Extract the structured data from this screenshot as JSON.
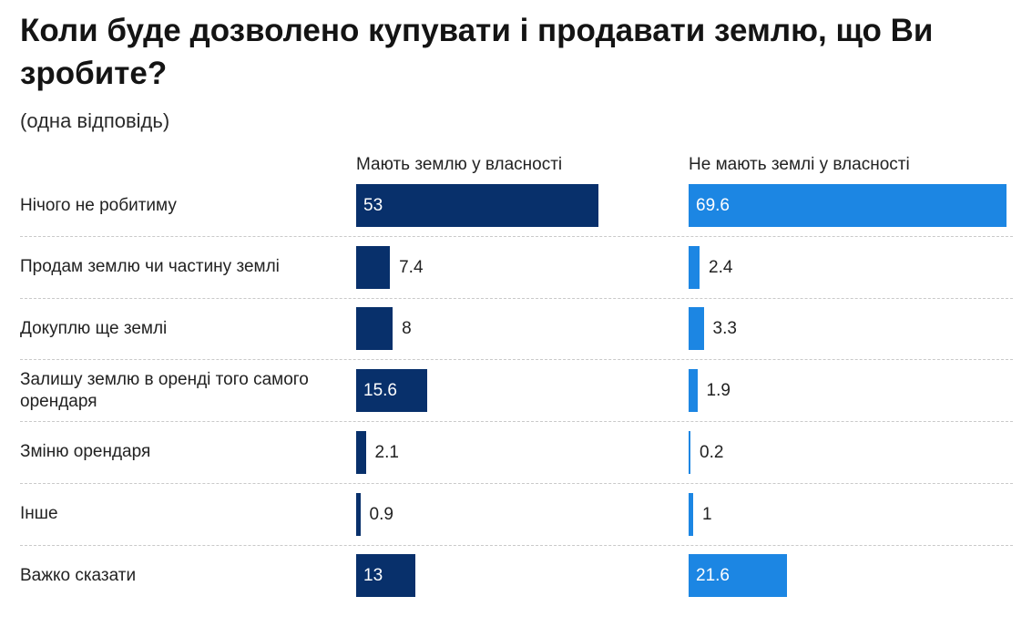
{
  "title": "Коли буде дозволено купувати і продавати землю, що Ви зробите?",
  "subtitle": "(одна відповідь)",
  "colors": {
    "owners": "#08306b",
    "nonowners": "#1c86e3"
  },
  "chart_data": {
    "type": "bar",
    "orientation": "horizontal",
    "categories": [
      "Нічого не робитиму",
      "Продам землю чи частину землі",
      "Докуплю ще землі",
      "Залишу землю в оренді того самого орендаря",
      "Зміню орендаря",
      "Інше",
      "Важко сказати"
    ],
    "series": [
      {
        "name": "Мають землю у власності",
        "values": [
          53,
          7.4,
          8,
          15.6,
          2.1,
          0.9,
          13
        ]
      },
      {
        "name": "Не мають землі у власності",
        "values": [
          69.6,
          2.4,
          3.3,
          1.9,
          0.2,
          1,
          21.6
        ]
      }
    ],
    "xlim": [
      0,
      70
    ],
    "grid": false,
    "legend": "none"
  }
}
